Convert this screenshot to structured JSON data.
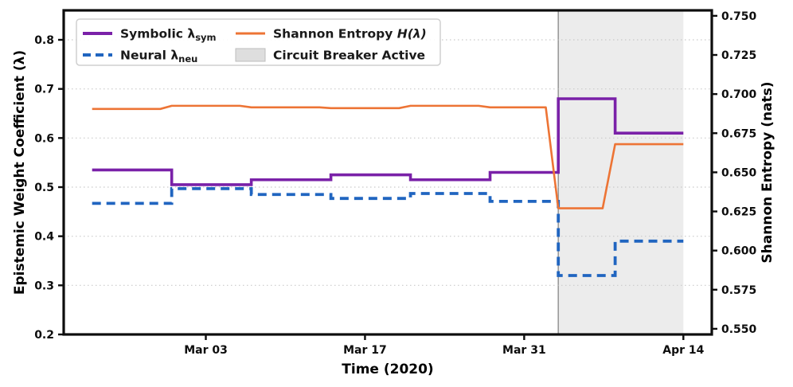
{
  "figure": {
    "xlabel": "Time (2020)",
    "ylabel_left": "Epistemic Weight Coefficient (λ)",
    "ylabel_right": "Shannon Entropy (nats)"
  },
  "legend": {
    "symbolic": {
      "label": "Symbolic λ",
      "sub": "sym"
    },
    "neural": {
      "label": "Neural λ",
      "sub": "neu"
    },
    "entropy": {
      "label": "Shannon Entropy ",
      "math": "H(λ)"
    },
    "breaker": {
      "label": "Circuit Breaker Active"
    }
  },
  "chart_data": {
    "type": "line",
    "title": "",
    "xlabel": "Time (2020)",
    "x_unit": "days since 2020-02-22",
    "xlim": [
      -2.5,
      54.5
    ],
    "x_ticks": [
      {
        "day": 10,
        "label": "Mar 03"
      },
      {
        "day": 24,
        "label": "Mar 17"
      },
      {
        "day": 38,
        "label": "Mar 31"
      },
      {
        "day": 52,
        "label": "Apr 14"
      }
    ],
    "left_axis": {
      "label": "Epistemic Weight Coefficient (λ)",
      "lim": [
        0.2,
        0.86
      ],
      "ticks": [
        {
          "v": 0.2,
          "label": "0.2"
        },
        {
          "v": 0.3,
          "label": "0.3"
        },
        {
          "v": 0.4,
          "label": "0.4"
        },
        {
          "v": 0.5,
          "label": "0.5"
        },
        {
          "v": 0.6,
          "label": "0.6"
        },
        {
          "v": 0.7,
          "label": "0.7"
        },
        {
          "v": 0.8,
          "label": "0.8"
        }
      ]
    },
    "right_axis": {
      "label": "Shannon Entropy (nats)",
      "lim": [
        0.5464,
        0.7535
      ],
      "ticks": [
        {
          "v": 0.55,
          "label": "0.550"
        },
        {
          "v": 0.575,
          "label": "0.575"
        },
        {
          "v": 0.6,
          "label": "0.600"
        },
        {
          "v": 0.625,
          "label": "0.625"
        },
        {
          "v": 0.65,
          "label": "0.650"
        },
        {
          "v": 0.675,
          "label": "0.675"
        },
        {
          "v": 0.7,
          "label": "0.700"
        },
        {
          "v": 0.725,
          "label": "0.725"
        },
        {
          "v": 0.75,
          "label": "0.750"
        }
      ]
    },
    "series": [
      {
        "name": "Symbolic λ_sym",
        "axis": "left",
        "style": "step-solid",
        "color": "#7a21a8",
        "x": [
          0,
          7,
          14,
          21,
          28,
          35,
          41,
          46,
          52
        ],
        "y": [
          0.535,
          0.505,
          0.515,
          0.525,
          0.515,
          0.53,
          0.68,
          0.61,
          0.61
        ]
      },
      {
        "name": "Neural λ_neu",
        "axis": "left",
        "style": "step-dashed",
        "color": "#2065c0",
        "x": [
          0,
          7,
          14,
          21,
          28,
          35,
          41,
          46,
          52
        ],
        "y": [
          0.467,
          0.497,
          0.485,
          0.477,
          0.487,
          0.471,
          0.32,
          0.39,
          0.39
        ]
      },
      {
        "name": "Shannon Entropy H(λ)",
        "axis": "right",
        "style": "linear-solid",
        "color": "#ed7435",
        "x": [
          0,
          6,
          7,
          13,
          14,
          20,
          21,
          27,
          28,
          34,
          35,
          39.9,
          41,
          44.9,
          46,
          52
        ],
        "y": [
          0.6905,
          0.6905,
          0.6925,
          0.6925,
          0.6915,
          0.6915,
          0.691,
          0.691,
          0.6925,
          0.6925,
          0.6915,
          0.6915,
          0.627,
          0.627,
          0.668,
          0.668
        ]
      }
    ],
    "span": {
      "label": "Circuit Breaker Active",
      "x0_day": 41,
      "x1_day": 52,
      "fill": "#ececec",
      "edge": "#9a9a9a"
    },
    "colors": {
      "symbolic": "#7a21a8",
      "neural": "#2065c0",
      "entropy": "#ed7435",
      "right_axis_label": "#e8600f"
    },
    "legend_position": "upper left",
    "grid": "horizontal-dotted"
  }
}
